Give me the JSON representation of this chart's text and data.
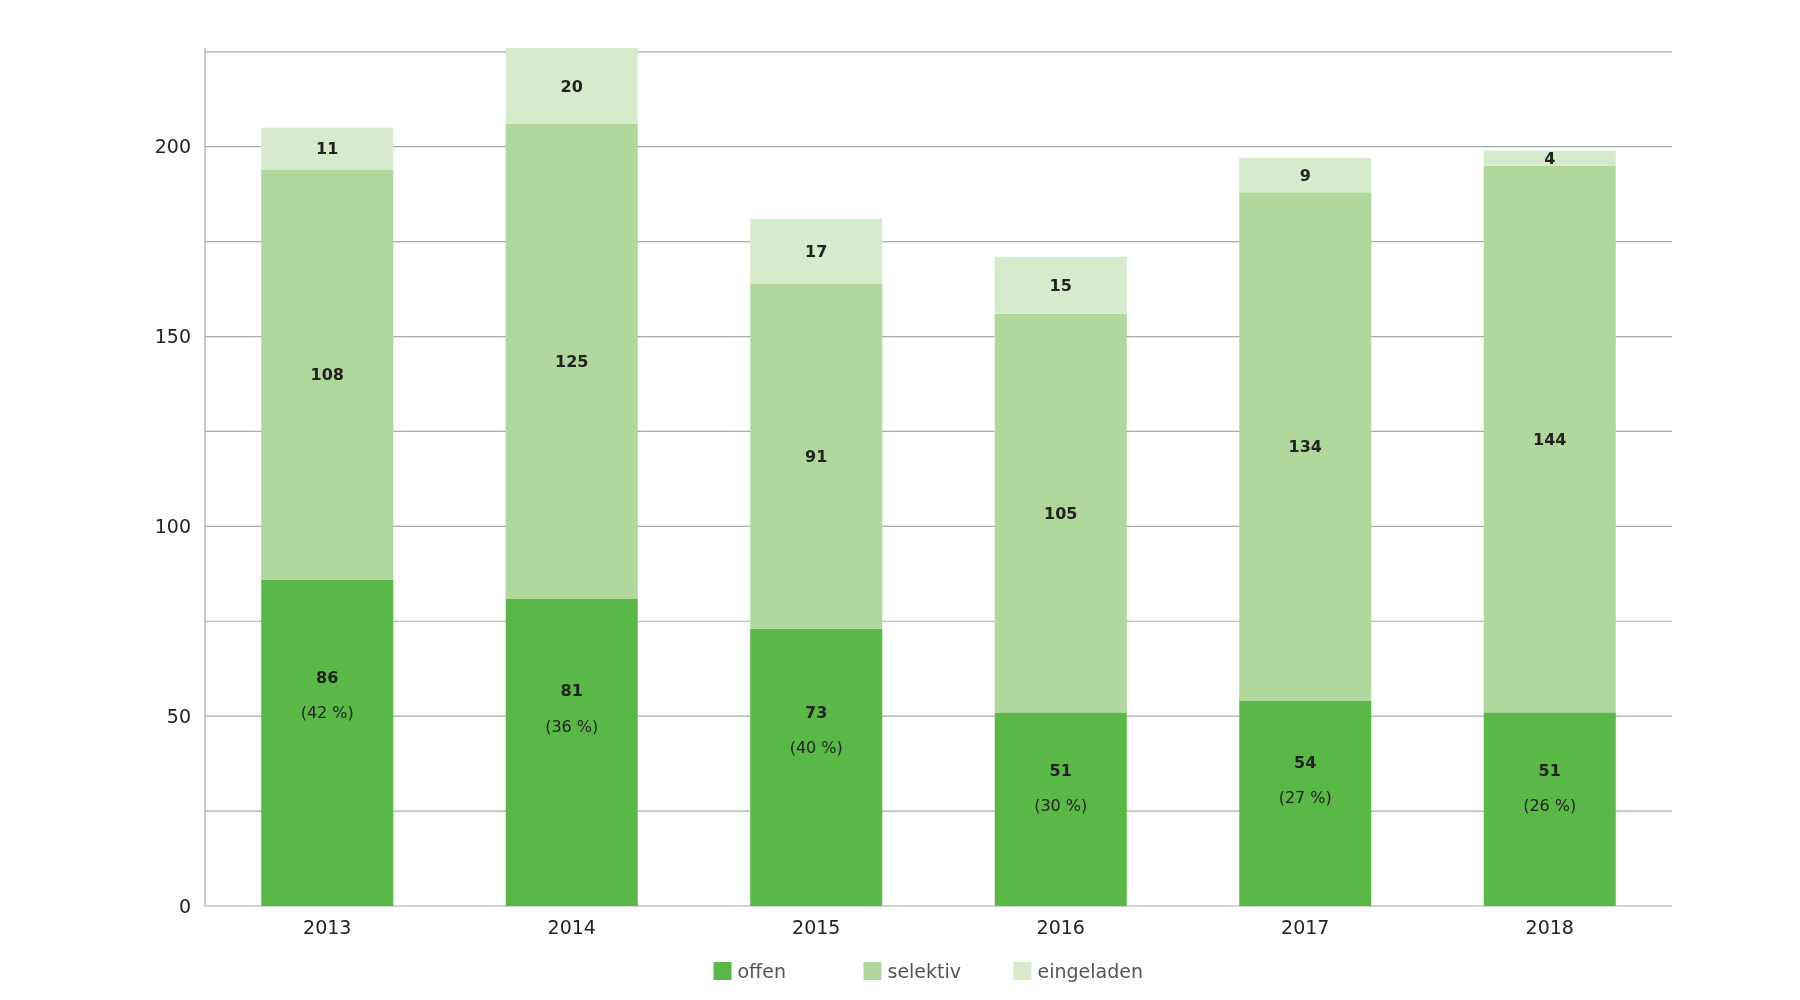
{
  "chart_data": {
    "type": "bar",
    "stacked": true,
    "categories": [
      "2013",
      "2014",
      "2015",
      "2016",
      "2017",
      "2018"
    ],
    "series": [
      {
        "name": "offen",
        "color": "#5ab946",
        "values": [
          86,
          81,
          73,
          51,
          54,
          51
        ],
        "value_labels": [
          "86\n(42 %)",
          "81\n(36 %)",
          "73\n(40 %)",
          "51\n(30 %)",
          "54\n(27 %)",
          "51\n(26 %)"
        ]
      },
      {
        "name": "selektiv",
        "color": "#b0d89c",
        "values": [
          108,
          125,
          91,
          105,
          134,
          144
        ],
        "value_labels": [
          "108",
          "125",
          "91",
          "105",
          "134",
          "144"
        ]
      },
      {
        "name": "eingeladen",
        "color": "#d6ebcc",
        "values": [
          11,
          20,
          17,
          15,
          9,
          4
        ],
        "value_labels": [
          "11",
          "20",
          "17",
          "15",
          "9",
          "4"
        ]
      }
    ],
    "ylim": [
      0,
      226
    ],
    "yticks": [
      0,
      {
        "value": 25,
        "label": null
      },
      50,
      {
        "value": 75,
        "label": null
      },
      100,
      {
        "value": 125,
        "label": null
      },
      150,
      {
        "value": 175,
        "label": null
      },
      200,
      {
        "value": 225,
        "label": null
      }
    ],
    "grid": "y",
    "legend": "bottom"
  }
}
